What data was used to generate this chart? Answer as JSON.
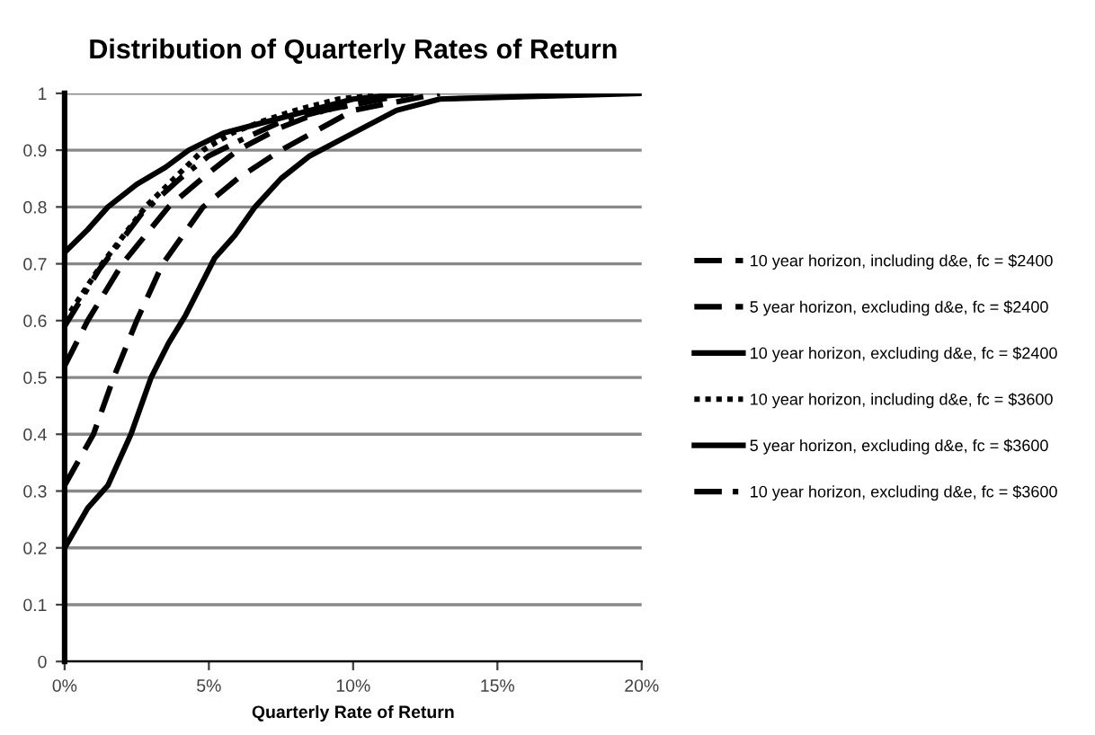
{
  "chart_data": {
    "type": "line",
    "title": "Distribution of Quarterly Rates of Return",
    "xlabel": "Quarterly Rate of Return",
    "xlim": [
      0,
      0.2
    ],
    "xticks": [
      {
        "value": 0,
        "label": "0%"
      },
      {
        "value": 0.05,
        "label": "5%"
      },
      {
        "value": 0.1,
        "label": "10%"
      },
      {
        "value": 0.15,
        "label": "15%"
      },
      {
        "value": 0.2,
        "label": "20%"
      }
    ],
    "ylim": [
      0,
      1
    ],
    "yticks": [
      0,
      0.1,
      0.2,
      0.3,
      0.4,
      0.5,
      0.6,
      0.7,
      0.8,
      0.9,
      1
    ],
    "grid": "y",
    "legend": "right",
    "marker": "none",
    "series": [
      {
        "name": "10 year horizon, including d&e, fc = $2400",
        "color": "#000000",
        "line_style": "dashed",
        "x": [
          0,
          0.01,
          0.017,
          0.025,
          0.034,
          0.048,
          0.06,
          0.075,
          0.1,
          0.13
        ],
        "values": [
          0.31,
          0.4,
          0.5,
          0.6,
          0.7,
          0.8,
          0.85,
          0.9,
          0.97,
          1
        ]
      },
      {
        "name": "5 year horizon, excluding d&e, fc = $2400",
        "color": "#000000",
        "line_style": "dashed",
        "x": [
          0,
          0.008,
          0.02,
          0.036,
          0.05,
          0.06,
          0.075,
          0.09,
          0.12
        ],
        "values": [
          0.52,
          0.6,
          0.7,
          0.8,
          0.86,
          0.9,
          0.94,
          0.97,
          1
        ]
      },
      {
        "name": "10 year horizon, excluding d&e, fc = $2400",
        "color": "#000000",
        "line_style": "solid",
        "x": [
          0,
          0.008,
          0.015,
          0.023,
          0.03,
          0.036,
          0.042,
          0.047,
          0.052,
          0.059,
          0.066,
          0.075,
          0.085,
          0.1,
          0.115,
          0.13,
          0.2
        ],
        "values": [
          0.2,
          0.27,
          0.31,
          0.4,
          0.5,
          0.56,
          0.61,
          0.66,
          0.71,
          0.75,
          0.8,
          0.85,
          0.89,
          0.93,
          0.97,
          0.99,
          1
        ]
      },
      {
        "name": "10 year horizon, including d&e, fc = $3600",
        "color": "#000000",
        "line_style": "dotted",
        "x": [
          0,
          0.013,
          0.028,
          0.04,
          0.048,
          0.058,
          0.068,
          0.08,
          0.095,
          0.115
        ],
        "values": [
          0.6,
          0.7,
          0.8,
          0.86,
          0.9,
          0.93,
          0.95,
          0.97,
          0.99,
          1
        ]
      },
      {
        "name": "5 year horizon, excluding d&e, fc = $3600",
        "color": "#000000",
        "line_style": "solid",
        "x": [
          0,
          0.008,
          0.015,
          0.025,
          0.035,
          0.043,
          0.055,
          0.07,
          0.085,
          0.1,
          0.12
        ],
        "values": [
          0.72,
          0.76,
          0.8,
          0.84,
          0.87,
          0.9,
          0.93,
          0.95,
          0.97,
          0.99,
          1
        ]
      },
      {
        "name": "10 year horizon, excluding d&e, fc = $3600",
        "color": "#000000",
        "line_style": "dashdot",
        "x": [
          0,
          0.012,
          0.027,
          0.04,
          0.05,
          0.062,
          0.075,
          0.09,
          0.11
        ],
        "values": [
          0.59,
          0.69,
          0.79,
          0.85,
          0.89,
          0.92,
          0.95,
          0.97,
          0.99
        ]
      }
    ]
  }
}
